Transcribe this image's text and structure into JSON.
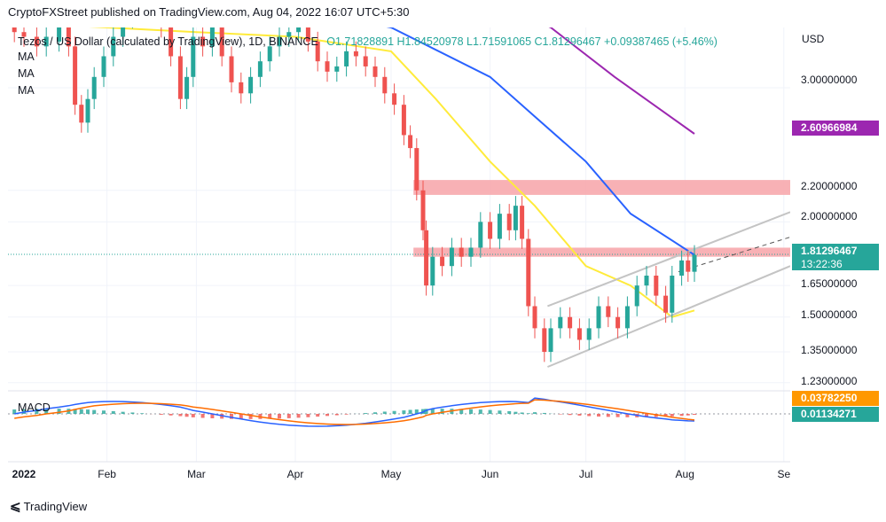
{
  "header": {
    "publisher_line": "CryptoFXStreet published on TradingView.com, Aug 04, 2022 16:07 UTC+5:30"
  },
  "legend": {
    "symbol": "Tezos / US Dollar (calculated by TradingView), 1D, BINANCE",
    "ohlc": "O1.71828891  H1.84520978  L1.71591065  C1.81296467  +0.09387465 (+5.46%)",
    "ma_labels": [
      "MA",
      "MA",
      "MA"
    ],
    "macd_label": "MACD"
  },
  "price_scale": {
    "currency": "USD",
    "ticks": [
      "3.00000000",
      "2.20000000",
      "2.00000000",
      "1.65000000",
      "1.50000000",
      "1.35000000",
      "1.23000000"
    ],
    "badges": {
      "ma200": {
        "value": "2.60966984",
        "color": "#9c27b0"
      },
      "last_price": {
        "value": "1.81296467",
        "countdown": "13:22:36",
        "color": "#26a69a"
      },
      "macd": {
        "value": "0.03782250",
        "color": "#ff9800"
      },
      "signal": {
        "value": "0.01134271",
        "color": "#26a69a"
      }
    }
  },
  "time_axis": {
    "labels": [
      "2022",
      "Feb",
      "Mar",
      "Apr",
      "May",
      "Jun",
      "Jul",
      "Aug",
      "Se"
    ]
  },
  "footer": {
    "brand": "TradingView"
  },
  "colors": {
    "up": "#26a69a",
    "down": "#ef5350",
    "ma50": "#ffeb3b",
    "ma100": "#2962ff",
    "ma200": "#9c27b0",
    "zone": "#f7a8ad",
    "channel": "#c4c4c4",
    "macd_line": "#2962ff",
    "signal_line": "#ff6d00"
  },
  "chart_data": {
    "type": "candlestick",
    "title": "Tezos / US Dollar (calculated by TradingView), 1D, BINANCE",
    "y_scale": "log",
    "ylim": [
      1.2,
      3.6
    ],
    "x_range": [
      "2022-01-01",
      "2022-09-03"
    ],
    "last": {
      "open": 1.71828891,
      "high": 1.84520978,
      "low": 1.71591065,
      "close": 1.81296467,
      "change": 0.09387465,
      "change_pct": 5.46
    },
    "candles": [
      [
        "2022-01-03",
        3.65,
        3.55
      ],
      [
        "2022-01-06",
        3.55,
        3.5
      ],
      [
        "2022-01-10",
        3.5,
        3.4
      ],
      [
        "2022-01-13",
        3.4,
        3.5
      ],
      [
        "2022-01-17",
        3.45,
        3.6
      ],
      [
        "2022-01-20",
        3.6,
        3.4
      ],
      [
        "2022-01-22",
        3.4,
        2.85
      ],
      [
        "2022-01-24",
        2.85,
        2.7
      ],
      [
        "2022-01-26",
        2.7,
        2.9
      ],
      [
        "2022-01-28",
        2.9,
        3.1
      ],
      [
        "2022-01-31",
        3.1,
        3.3
      ],
      [
        "2022-02-03",
        3.3,
        3.5
      ],
      [
        "2022-02-06",
        3.5,
        3.7
      ],
      [
        "2022-02-09",
        3.7,
        3.9
      ],
      [
        "2022-02-12",
        3.9,
        3.8
      ],
      [
        "2022-02-15",
        3.8,
        3.9
      ],
      [
        "2022-02-18",
        3.9,
        3.6
      ],
      [
        "2022-02-21",
        3.6,
        3.3
      ],
      [
        "2022-02-24",
        3.3,
        2.9
      ],
      [
        "2022-02-26",
        2.9,
        3.1
      ],
      [
        "2022-02-28",
        3.1,
        3.5
      ],
      [
        "2022-03-03",
        3.5,
        3.4
      ],
      [
        "2022-03-06",
        3.4,
        3.6
      ],
      [
        "2022-03-09",
        3.6,
        3.3
      ],
      [
        "2022-03-12",
        3.3,
        3.05
      ],
      [
        "2022-03-15",
        3.05,
        2.95
      ],
      [
        "2022-03-18",
        2.95,
        3.1
      ],
      [
        "2022-03-21",
        3.1,
        3.25
      ],
      [
        "2022-03-24",
        3.25,
        3.4
      ],
      [
        "2022-03-27",
        3.4,
        3.5
      ],
      [
        "2022-03-30",
        3.5,
        3.55
      ],
      [
        "2022-04-02",
        3.55,
        3.6
      ],
      [
        "2022-04-05",
        3.6,
        3.45
      ],
      [
        "2022-04-08",
        3.45,
        3.25
      ],
      [
        "2022-04-11",
        3.25,
        3.15
      ],
      [
        "2022-04-14",
        3.15,
        3.2
      ],
      [
        "2022-04-17",
        3.2,
        3.35
      ],
      [
        "2022-04-20",
        3.35,
        3.3
      ],
      [
        "2022-04-23",
        3.3,
        3.2
      ],
      [
        "2022-04-26",
        3.2,
        3.1
      ],
      [
        "2022-04-29",
        3.1,
        2.95
      ],
      [
        "2022-05-02",
        2.95,
        2.85
      ],
      [
        "2022-05-05",
        2.85,
        2.6
      ],
      [
        "2022-05-07",
        2.6,
        2.5
      ],
      [
        "2022-05-09",
        2.5,
        2.2
      ],
      [
        "2022-05-11",
        2.2,
        1.95
      ],
      [
        "2022-05-12",
        1.95,
        1.65
      ],
      [
        "2022-05-14",
        1.65,
        1.8
      ],
      [
        "2022-05-17",
        1.8,
        1.75
      ],
      [
        "2022-05-20",
        1.75,
        1.85
      ],
      [
        "2022-05-23",
        1.85,
        1.8
      ],
      [
        "2022-05-26",
        1.8,
        1.85
      ],
      [
        "2022-05-29",
        1.85,
        2.0
      ],
      [
        "2022-06-01",
        2.0,
        1.9
      ],
      [
        "2022-06-04",
        1.9,
        2.05
      ],
      [
        "2022-06-07",
        2.05,
        1.95
      ],
      [
        "2022-06-09",
        1.95,
        2.1
      ],
      [
        "2022-06-11",
        2.1,
        1.9
      ],
      [
        "2022-06-13",
        1.9,
        1.55
      ],
      [
        "2022-06-15",
        1.55,
        1.45
      ],
      [
        "2022-06-18",
        1.45,
        1.35
      ],
      [
        "2022-06-20",
        1.35,
        1.45
      ],
      [
        "2022-06-23",
        1.45,
        1.5
      ],
      [
        "2022-06-26",
        1.5,
        1.45
      ],
      [
        "2022-06-29",
        1.45,
        1.4
      ],
      [
        "2022-07-02",
        1.4,
        1.45
      ],
      [
        "2022-07-05",
        1.45,
        1.55
      ],
      [
        "2022-07-08",
        1.55,
        1.5
      ],
      [
        "2022-07-11",
        1.5,
        1.45
      ],
      [
        "2022-07-14",
        1.45,
        1.55
      ],
      [
        "2022-07-17",
        1.55,
        1.65
      ],
      [
        "2022-07-20",
        1.65,
        1.7
      ],
      [
        "2022-07-23",
        1.7,
        1.6
      ],
      [
        "2022-07-26",
        1.6,
        1.52
      ],
      [
        "2022-07-28",
        1.52,
        1.7
      ],
      [
        "2022-07-31",
        1.7,
        1.78
      ],
      [
        "2022-08-02",
        1.78,
        1.72
      ],
      [
        "2022-08-04",
        1.72,
        1.81
      ]
    ],
    "moving_averages": {
      "ma50": [
        [
          "2022-01-03",
          3.65
        ],
        [
          "2022-02-01",
          3.6
        ],
        [
          "2022-03-01",
          3.55
        ],
        [
          "2022-04-01",
          3.5
        ],
        [
          "2022-05-01",
          3.35
        ],
        [
          "2022-05-15",
          2.9
        ],
        [
          "2022-06-01",
          2.4
        ],
        [
          "2022-06-15",
          2.1
        ],
        [
          "2022-07-01",
          1.75
        ],
        [
          "2022-07-15",
          1.65
        ],
        [
          "2022-07-28",
          1.5
        ],
        [
          "2022-08-04",
          1.53
        ]
      ],
      "ma100": [
        [
          "2022-03-01",
          4.2
        ],
        [
          "2022-04-01",
          3.8
        ],
        [
          "2022-05-01",
          3.6
        ],
        [
          "2022-06-01",
          3.1
        ],
        [
          "2022-06-15",
          2.75
        ],
        [
          "2022-07-01",
          2.4
        ],
        [
          "2022-07-15",
          2.05
        ],
        [
          "2022-08-04",
          1.81
        ]
      ],
      "ma200": [
        [
          "2022-06-01",
          3.9
        ],
        [
          "2022-06-20",
          3.6
        ],
        [
          "2022-07-10",
          3.1
        ],
        [
          "2022-08-04",
          2.61
        ]
      ]
    },
    "resistance_zones": [
      {
        "low": 2.17,
        "high": 2.27
      },
      {
        "low": 1.8,
        "high": 1.85
      }
    ],
    "channel": {
      "upper": [
        [
          "2022-06-19",
          1.55
        ],
        [
          "2022-09-03",
          2.06
        ]
      ],
      "middle": [
        [
          "2022-07-30",
          1.72
        ],
        [
          "2022-09-03",
          1.91
        ]
      ],
      "lower": [
        [
          "2022-06-19",
          1.29
        ],
        [
          "2022-09-03",
          1.75
        ]
      ]
    },
    "macd": {
      "macd_value": 0.0378225,
      "signal_value": 0.01134271
    }
  }
}
